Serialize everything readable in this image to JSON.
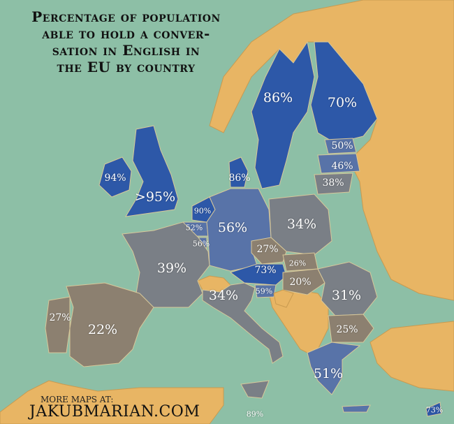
{
  "title": "Percentage of population able to hold a conver- sation in English in the EU by country",
  "title_lines": [
    "Percentage of population",
    "able to hold a conver-",
    "sation in English in",
    "the EU by country"
  ],
  "credit": {
    "line1": "MORE MAPS AT:",
    "line2": "JAKUBMARIAN.COM"
  },
  "colors": {
    "sea": "#8dbfa6",
    "non_eu": "#e8b564",
    "high": "#2d58a8",
    "upper_mid": "#5873a8",
    "mid": "#7a7f86",
    "low": "#8c8070"
  },
  "countries": {
    "ireland": "94%",
    "uk": ">95%",
    "sweden": "86%",
    "finland": "70%",
    "denmark": "86%",
    "estonia": "50%",
    "latvia": "46%",
    "lithuania": "38%",
    "netherlands": "90%",
    "belgium": "52%",
    "luxembourg": "56%",
    "germany": "56%",
    "poland": "34%",
    "czechia": "27%",
    "slovakia": "26%",
    "austria": "73%",
    "hungary": "20%",
    "slovenia": "59%",
    "france": "39%",
    "italy": "34%",
    "romania": "31%",
    "bulgaria": "25%",
    "greece": "51%",
    "spain": "22%",
    "portugal": "27%",
    "malta": "89%",
    "cyprus": "73%"
  }
}
